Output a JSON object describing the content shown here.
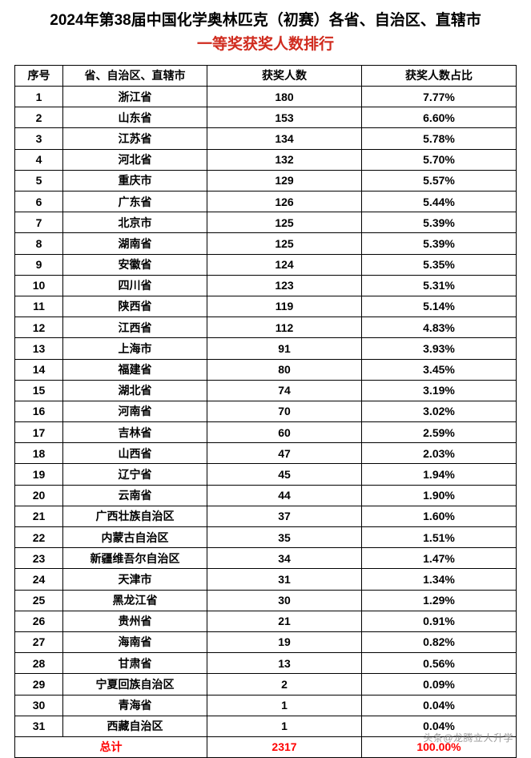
{
  "title": {
    "line1": "2024年第38届中国化学奥林匹克（初赛）各省、自治区、直辖市",
    "line2": "一等奖获奖人数排行",
    "line2_color": "#d02b1e"
  },
  "headers": {
    "rank": "序号",
    "province": "省、自治区、直辖市",
    "count": "获奖人数",
    "percent": "获奖人数占比"
  },
  "rows": [
    {
      "rank": "1",
      "province": "浙江省",
      "count": "180",
      "percent": "7.77%"
    },
    {
      "rank": "2",
      "province": "山东省",
      "count": "153",
      "percent": "6.60%"
    },
    {
      "rank": "3",
      "province": "江苏省",
      "count": "134",
      "percent": "5.78%"
    },
    {
      "rank": "4",
      "province": "河北省",
      "count": "132",
      "percent": "5.70%"
    },
    {
      "rank": "5",
      "province": "重庆市",
      "count": "129",
      "percent": "5.57%"
    },
    {
      "rank": "6",
      "province": "广东省",
      "count": "126",
      "percent": "5.44%"
    },
    {
      "rank": "7",
      "province": "北京市",
      "count": "125",
      "percent": "5.39%"
    },
    {
      "rank": "8",
      "province": "湖南省",
      "count": "125",
      "percent": "5.39%"
    },
    {
      "rank": "9",
      "province": "安徽省",
      "count": "124",
      "percent": "5.35%"
    },
    {
      "rank": "10",
      "province": "四川省",
      "count": "123",
      "percent": "5.31%"
    },
    {
      "rank": "11",
      "province": "陕西省",
      "count": "119",
      "percent": "5.14%"
    },
    {
      "rank": "12",
      "province": "江西省",
      "count": "112",
      "percent": "4.83%"
    },
    {
      "rank": "13",
      "province": "上海市",
      "count": "91",
      "percent": "3.93%"
    },
    {
      "rank": "14",
      "province": "福建省",
      "count": "80",
      "percent": "3.45%"
    },
    {
      "rank": "15",
      "province": "湖北省",
      "count": "74",
      "percent": "3.19%"
    },
    {
      "rank": "16",
      "province": "河南省",
      "count": "70",
      "percent": "3.02%"
    },
    {
      "rank": "17",
      "province": "吉林省",
      "count": "60",
      "percent": "2.59%"
    },
    {
      "rank": "18",
      "province": "山西省",
      "count": "47",
      "percent": "2.03%"
    },
    {
      "rank": "19",
      "province": "辽宁省",
      "count": "45",
      "percent": "1.94%"
    },
    {
      "rank": "20",
      "province": "云南省",
      "count": "44",
      "percent": "1.90%"
    },
    {
      "rank": "21",
      "province": "广西壮族自治区",
      "count": "37",
      "percent": "1.60%"
    },
    {
      "rank": "22",
      "province": "内蒙古自治区",
      "count": "35",
      "percent": "1.51%"
    },
    {
      "rank": "23",
      "province": "新疆维吾尔自治区",
      "count": "34",
      "percent": "1.47%"
    },
    {
      "rank": "24",
      "province": "天津市",
      "count": "31",
      "percent": "1.34%"
    },
    {
      "rank": "25",
      "province": "黑龙江省",
      "count": "30",
      "percent": "1.29%"
    },
    {
      "rank": "26",
      "province": "贵州省",
      "count": "21",
      "percent": "0.91%"
    },
    {
      "rank": "27",
      "province": "海南省",
      "count": "19",
      "percent": "0.82%"
    },
    {
      "rank": "28",
      "province": "甘肃省",
      "count": "13",
      "percent": "0.56%"
    },
    {
      "rank": "29",
      "province": "宁夏回族自治区",
      "count": "2",
      "percent": "0.09%"
    },
    {
      "rank": "30",
      "province": "青海省",
      "count": "1",
      "percent": "0.04%"
    },
    {
      "rank": "31",
      "province": "西藏自治区",
      "count": "1",
      "percent": "0.04%"
    }
  ],
  "total": {
    "label": "总计",
    "count": "2317",
    "percent": "100.00%",
    "color": "#ff0000"
  },
  "watermark": "头条@龙腾立人升学",
  "styling": {
    "border_color": "#000000",
    "header_bg": "#ffffff",
    "text_color": "#000000",
    "font_size_title": 19,
    "font_size_cell": 14,
    "col_widths": {
      "rank": 60,
      "province": 180
    }
  }
}
